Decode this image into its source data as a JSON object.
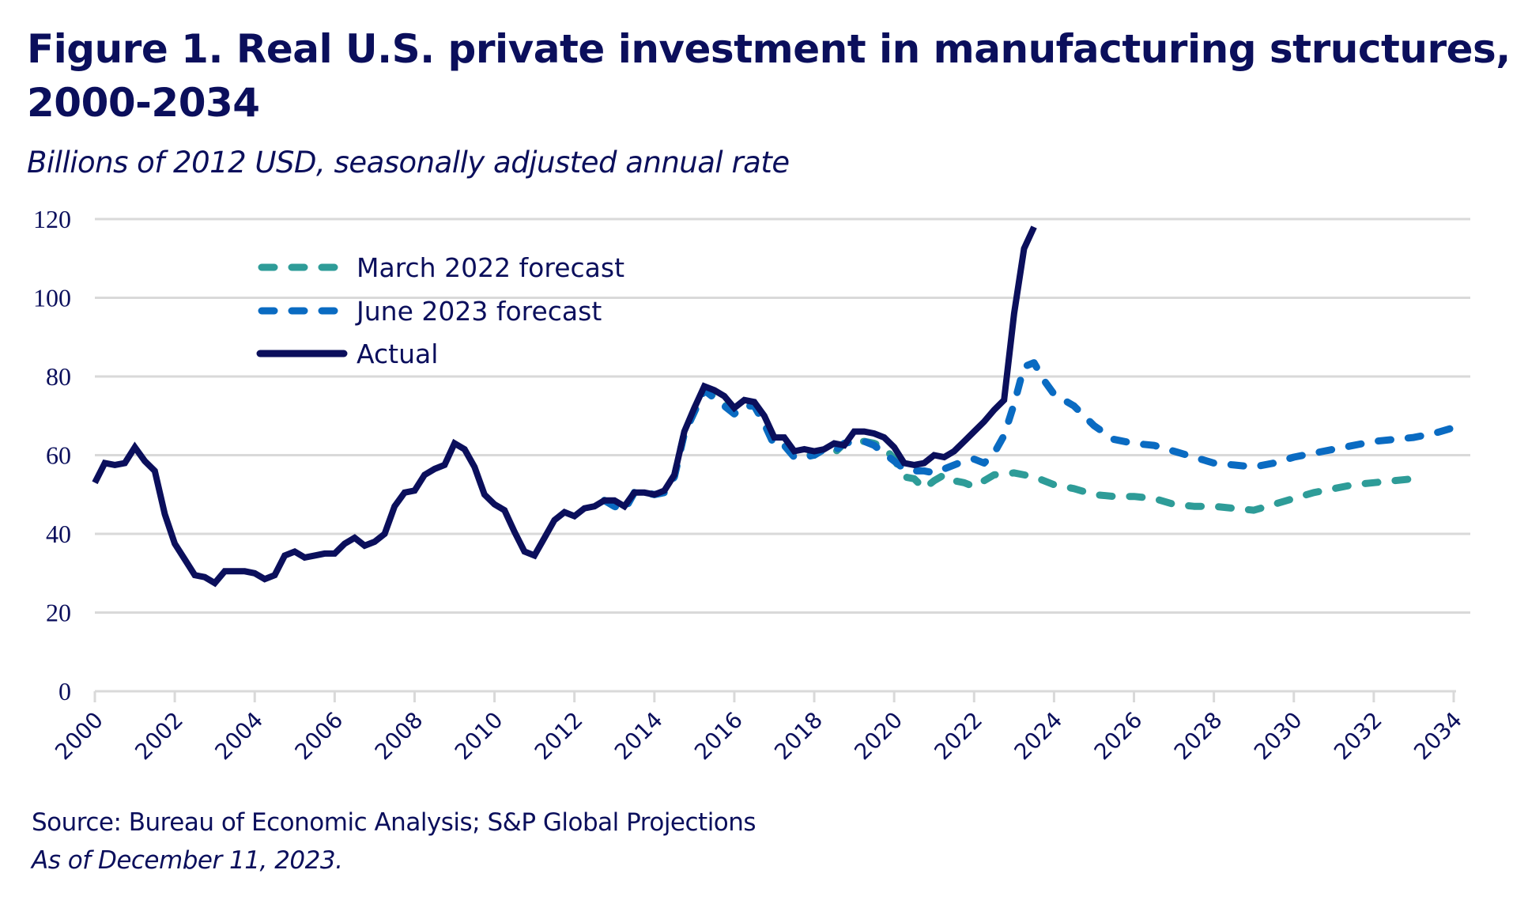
{
  "header": {
    "title": "Figure 1. Real U.S. private investment in manufacturing structures, 2000-2034",
    "subtitle": "Billions of 2012 USD, seasonally adjusted annual rate"
  },
  "footer": {
    "source": "Source: Bureau of Economic Analysis; S&P Global Projections",
    "as_of": "As of December 11, 2023."
  },
  "chart_data": {
    "type": "line",
    "title": "Figure 1. Real U.S. private investment in manufacturing structures, 2000-2034",
    "subtitle": "Billions of 2012 USD, seasonally adjusted annual rate",
    "xlabel": "",
    "ylabel": "",
    "xlim": [
      2000,
      2034
    ],
    "ylim": [
      0,
      120
    ],
    "x_ticks": [
      "2000",
      "2002",
      "2004",
      "2006",
      "2008",
      "2010",
      "2012",
      "2014",
      "2016",
      "2018",
      "2020",
      "2022",
      "2024",
      "2026",
      "2028",
      "2030",
      "2032",
      "2034"
    ],
    "y_ticks": [
      "0",
      "20",
      "40",
      "60",
      "80",
      "100",
      "120"
    ],
    "grid": "horizontal",
    "legend_position": "top-left",
    "series": [
      {
        "name": "March 2022 forecast",
        "color": "#2e9c98",
        "style": "dashed",
        "points": [
          [
            2012.75,
            48.5
          ],
          [
            2013.0,
            47.0
          ],
          [
            2013.25,
            46.0
          ],
          [
            2013.5,
            50.5
          ],
          [
            2013.75,
            50.5
          ],
          [
            2014.0,
            50.0
          ],
          [
            2014.25,
            50.5
          ],
          [
            2014.5,
            54.5
          ],
          [
            2014.75,
            65.5
          ],
          [
            2015.0,
            71.0
          ],
          [
            2015.25,
            76.5
          ],
          [
            2015.5,
            75.0
          ],
          [
            2015.75,
            73.0
          ],
          [
            2016.0,
            70.5
          ],
          [
            2016.25,
            72.5
          ],
          [
            2016.5,
            72.5
          ],
          [
            2016.75,
            68.0
          ],
          [
            2017.0,
            62.5
          ],
          [
            2017.25,
            62.5
          ],
          [
            2017.5,
            59.5
          ],
          [
            2017.75,
            60.0
          ],
          [
            2018.0,
            60.0
          ],
          [
            2018.25,
            61.5
          ],
          [
            2018.5,
            60.5
          ],
          [
            2018.75,
            63.0
          ],
          [
            2019.0,
            63.5
          ],
          [
            2019.25,
            63.5
          ],
          [
            2019.5,
            63.0
          ],
          [
            2019.75,
            62.0
          ],
          [
            2020.0,
            59.0
          ],
          [
            2020.25,
            54.5
          ],
          [
            2020.5,
            54.0
          ],
          [
            2020.75,
            51.5
          ],
          [
            2021.0,
            53.5
          ],
          [
            2021.25,
            55.0
          ],
          [
            2021.5,
            53.5
          ],
          [
            2021.75,
            53.0
          ],
          [
            2022.0,
            52.0
          ],
          [
            2022.25,
            53.5
          ],
          [
            2022.5,
            55.0
          ],
          [
            2023.0,
            55.5
          ],
          [
            2023.5,
            54.5
          ],
          [
            2024.0,
            52.5
          ],
          [
            2024.5,
            51.5
          ],
          [
            2025.0,
            50.0
          ],
          [
            2025.5,
            49.5
          ],
          [
            2026.0,
            49.5
          ],
          [
            2026.5,
            49.0
          ],
          [
            2027.0,
            47.5
          ],
          [
            2027.5,
            47.0
          ],
          [
            2028.0,
            47.0
          ],
          [
            2028.5,
            46.5
          ],
          [
            2029.0,
            46.0
          ],
          [
            2029.5,
            47.5
          ],
          [
            2030.0,
            49.0
          ],
          [
            2030.5,
            50.5
          ],
          [
            2031.0,
            51.5
          ],
          [
            2031.5,
            52.5
          ],
          [
            2032.0,
            53.0
          ],
          [
            2032.5,
            53.5
          ],
          [
            2033.0,
            54.0
          ]
        ]
      },
      {
        "name": "June 2023 forecast",
        "color": "#0a6bc2",
        "style": "dashed",
        "points": [
          [
            2012.75,
            48.5
          ],
          [
            2013.0,
            47.0
          ],
          [
            2013.25,
            46.0
          ],
          [
            2013.5,
            50.5
          ],
          [
            2013.75,
            50.5
          ],
          [
            2014.0,
            50.0
          ],
          [
            2014.25,
            50.5
          ],
          [
            2014.5,
            54.5
          ],
          [
            2014.75,
            65.5
          ],
          [
            2015.0,
            71.0
          ],
          [
            2015.25,
            76.5
          ],
          [
            2015.5,
            74.5
          ],
          [
            2015.75,
            72.5
          ],
          [
            2016.0,
            70.5
          ],
          [
            2016.25,
            72.5
          ],
          [
            2016.5,
            72.5
          ],
          [
            2016.75,
            68.0
          ],
          [
            2017.0,
            62.5
          ],
          [
            2017.25,
            62.5
          ],
          [
            2017.5,
            59.5
          ],
          [
            2017.75,
            59.5
          ],
          [
            2018.0,
            60.0
          ],
          [
            2018.25,
            61.5
          ],
          [
            2018.5,
            61.0
          ],
          [
            2018.75,
            63.0
          ],
          [
            2019.0,
            63.5
          ],
          [
            2019.25,
            63.5
          ],
          [
            2019.5,
            62.5
          ],
          [
            2019.75,
            60.5
          ],
          [
            2020.0,
            58.5
          ],
          [
            2020.25,
            56.5
          ],
          [
            2020.5,
            56.0
          ],
          [
            2020.75,
            56.0
          ],
          [
            2021.0,
            55.5
          ],
          [
            2021.25,
            56.5
          ],
          [
            2021.5,
            57.5
          ],
          [
            2021.75,
            58.5
          ],
          [
            2022.0,
            59.0
          ],
          [
            2022.25,
            58.0
          ],
          [
            2022.5,
            60.5
          ],
          [
            2022.75,
            65.0
          ],
          [
            2023.0,
            73.0
          ],
          [
            2023.25,
            82.5
          ],
          [
            2023.5,
            83.5
          ],
          [
            2023.75,
            79.0
          ],
          [
            2024.0,
            75.5
          ],
          [
            2024.5,
            72.5
          ],
          [
            2025.0,
            67.5
          ],
          [
            2025.5,
            64.0
          ],
          [
            2026.0,
            63.0
          ],
          [
            2026.5,
            62.5
          ],
          [
            2027.0,
            61.0
          ],
          [
            2027.5,
            59.5
          ],
          [
            2028.0,
            58.0
          ],
          [
            2028.5,
            57.5
          ],
          [
            2029.0,
            57.0
          ],
          [
            2029.5,
            58.0
          ],
          [
            2030.0,
            59.5
          ],
          [
            2030.5,
            60.5
          ],
          [
            2031.0,
            61.5
          ],
          [
            2031.5,
            62.5
          ],
          [
            2032.0,
            63.5
          ],
          [
            2032.5,
            64.0
          ],
          [
            2033.0,
            64.5
          ],
          [
            2033.5,
            65.5
          ],
          [
            2034.0,
            67.0
          ]
        ]
      },
      {
        "name": "Actual",
        "color": "#0b0f5c",
        "style": "solid",
        "points": [
          [
            2000.0,
            53.0
          ],
          [
            2000.25,
            58.0
          ],
          [
            2000.5,
            57.5
          ],
          [
            2000.75,
            58.0
          ],
          [
            2001.0,
            62.0
          ],
          [
            2001.25,
            58.5
          ],
          [
            2001.5,
            56.0
          ],
          [
            2001.75,
            45.0
          ],
          [
            2002.0,
            37.5
          ],
          [
            2002.25,
            33.5
          ],
          [
            2002.5,
            29.5
          ],
          [
            2002.75,
            29.0
          ],
          [
            2003.0,
            27.5
          ],
          [
            2003.25,
            30.5
          ],
          [
            2003.5,
            30.5
          ],
          [
            2003.75,
            30.5
          ],
          [
            2004.0,
            30.0
          ],
          [
            2004.25,
            28.5
          ],
          [
            2004.5,
            29.5
          ],
          [
            2004.75,
            34.5
          ],
          [
            2005.0,
            35.5
          ],
          [
            2005.25,
            34.0
          ],
          [
            2005.5,
            34.5
          ],
          [
            2005.75,
            35.0
          ],
          [
            2006.0,
            35.0
          ],
          [
            2006.25,
            37.5
          ],
          [
            2006.5,
            39.0
          ],
          [
            2006.75,
            37.0
          ],
          [
            2007.0,
            38.0
          ],
          [
            2007.25,
            40.0
          ],
          [
            2007.5,
            47.0
          ],
          [
            2007.75,
            50.5
          ],
          [
            2008.0,
            51.0
          ],
          [
            2008.25,
            55.0
          ],
          [
            2008.5,
            56.5
          ],
          [
            2008.75,
            57.5
          ],
          [
            2009.0,
            63.0
          ],
          [
            2009.25,
            61.5
          ],
          [
            2009.5,
            57.0
          ],
          [
            2009.75,
            50.0
          ],
          [
            2010.0,
            47.5
          ],
          [
            2010.25,
            46.0
          ],
          [
            2010.5,
            40.5
          ],
          [
            2010.75,
            35.5
          ],
          [
            2011.0,
            34.5
          ],
          [
            2011.25,
            39.0
          ],
          [
            2011.5,
            43.5
          ],
          [
            2011.75,
            45.5
          ],
          [
            2012.0,
            44.5
          ],
          [
            2012.25,
            46.5
          ],
          [
            2012.5,
            47.0
          ],
          [
            2012.75,
            48.5
          ],
          [
            2013.0,
            48.5
          ],
          [
            2013.25,
            47.0
          ],
          [
            2013.5,
            50.5
          ],
          [
            2013.75,
            50.5
          ],
          [
            2014.0,
            50.0
          ],
          [
            2014.25,
            51.0
          ],
          [
            2014.5,
            55.0
          ],
          [
            2014.75,
            66.0
          ],
          [
            2015.0,
            72.0
          ],
          [
            2015.25,
            77.5
          ],
          [
            2015.5,
            76.5
          ],
          [
            2015.75,
            75.0
          ],
          [
            2016.0,
            72.0
          ],
          [
            2016.25,
            74.0
          ],
          [
            2016.5,
            73.5
          ],
          [
            2016.75,
            70.0
          ],
          [
            2017.0,
            64.5
          ],
          [
            2017.25,
            64.5
          ],
          [
            2017.5,
            61.0
          ],
          [
            2017.75,
            61.5
          ],
          [
            2018.0,
            61.0
          ],
          [
            2018.25,
            61.5
          ],
          [
            2018.5,
            63.0
          ],
          [
            2018.75,
            62.5
          ],
          [
            2019.0,
            66.0
          ],
          [
            2019.25,
            66.0
          ],
          [
            2019.5,
            65.5
          ],
          [
            2019.75,
            64.5
          ],
          [
            2020.0,
            62.0
          ],
          [
            2020.25,
            58.0
          ],
          [
            2020.5,
            57.5
          ],
          [
            2020.75,
            58.0
          ],
          [
            2021.0,
            60.0
          ],
          [
            2021.25,
            59.5
          ],
          [
            2021.5,
            61.0
          ],
          [
            2021.75,
            63.5
          ],
          [
            2022.0,
            66.0
          ],
          [
            2022.25,
            68.5
          ],
          [
            2022.5,
            71.5
          ],
          [
            2022.75,
            74.0
          ],
          [
            2023.0,
            96.0
          ],
          [
            2023.25,
            112.5
          ],
          [
            2023.5,
            118.0
          ]
        ]
      }
    ]
  }
}
